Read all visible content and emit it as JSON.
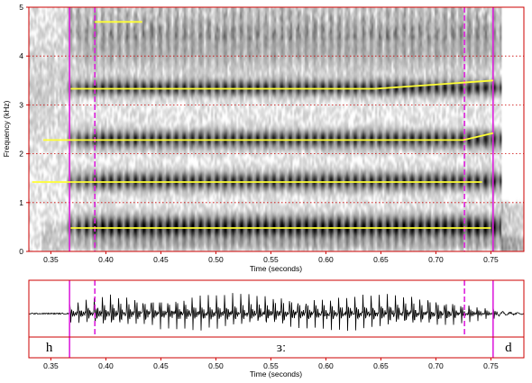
{
  "chart_data": [
    {
      "type": "spectrogram",
      "xlabel": "Time (seconds)",
      "ylabel": "Frequency (kHz)",
      "xlim": [
        0.33,
        0.78
      ],
      "ylim": [
        0,
        5
      ],
      "x_ticks": [
        "0.35",
        "0.40",
        "0.45",
        "0.50",
        "0.55",
        "0.60",
        "0.65",
        "0.70",
        "0.75"
      ],
      "y_ticks": [
        "0",
        "1",
        "2",
        "3",
        "4",
        "5"
      ],
      "grid": "dotted red horizontal at each kHz",
      "colors": {
        "frame": "#cc0000",
        "formant": "#ffff33",
        "boundary": "#dd22dd",
        "grid": "#cc0000"
      },
      "formant_tracks": [
        {
          "points": [
            [
              0.368,
              0.48
            ],
            [
              0.75,
              0.48
            ]
          ]
        },
        {
          "points": [
            [
              0.333,
              1.42
            ],
            [
              0.742,
              1.42
            ]
          ]
        },
        {
          "points": [
            [
              0.343,
              2.28
            ],
            [
              0.725,
              2.28
            ],
            [
              0.752,
              2.42
            ]
          ]
        },
        {
          "points": [
            [
              0.368,
              3.33
            ],
            [
              0.645,
              3.33
            ],
            [
              0.752,
              3.5
            ]
          ]
        },
        {
          "points": [
            [
              0.39,
              4.7
            ],
            [
              0.433,
              4.7
            ]
          ]
        }
      ],
      "boundaries_solid": [
        0.367,
        0.752
      ],
      "boundaries_dashed": [
        0.39,
        0.726
      ]
    },
    {
      "type": "waveform",
      "xlabel": "Time (seconds)",
      "xlim": [
        0.33,
        0.78
      ],
      "x_ticks": [
        "0.35",
        "0.40",
        "0.45",
        "0.50",
        "0.55",
        "0.60",
        "0.65",
        "0.70",
        "0.75"
      ],
      "boundaries_solid": [
        0.367,
        0.752
      ],
      "boundaries_dashed": [
        0.39,
        0.726
      ]
    }
  ],
  "tier": {
    "segments": [
      {
        "label": "h",
        "start": 0.33,
        "end": 0.367
      },
      {
        "label": "ɜː",
        "start": 0.367,
        "end": 0.752
      },
      {
        "label": "d",
        "start": 0.752,
        "end": 0.78
      }
    ]
  }
}
